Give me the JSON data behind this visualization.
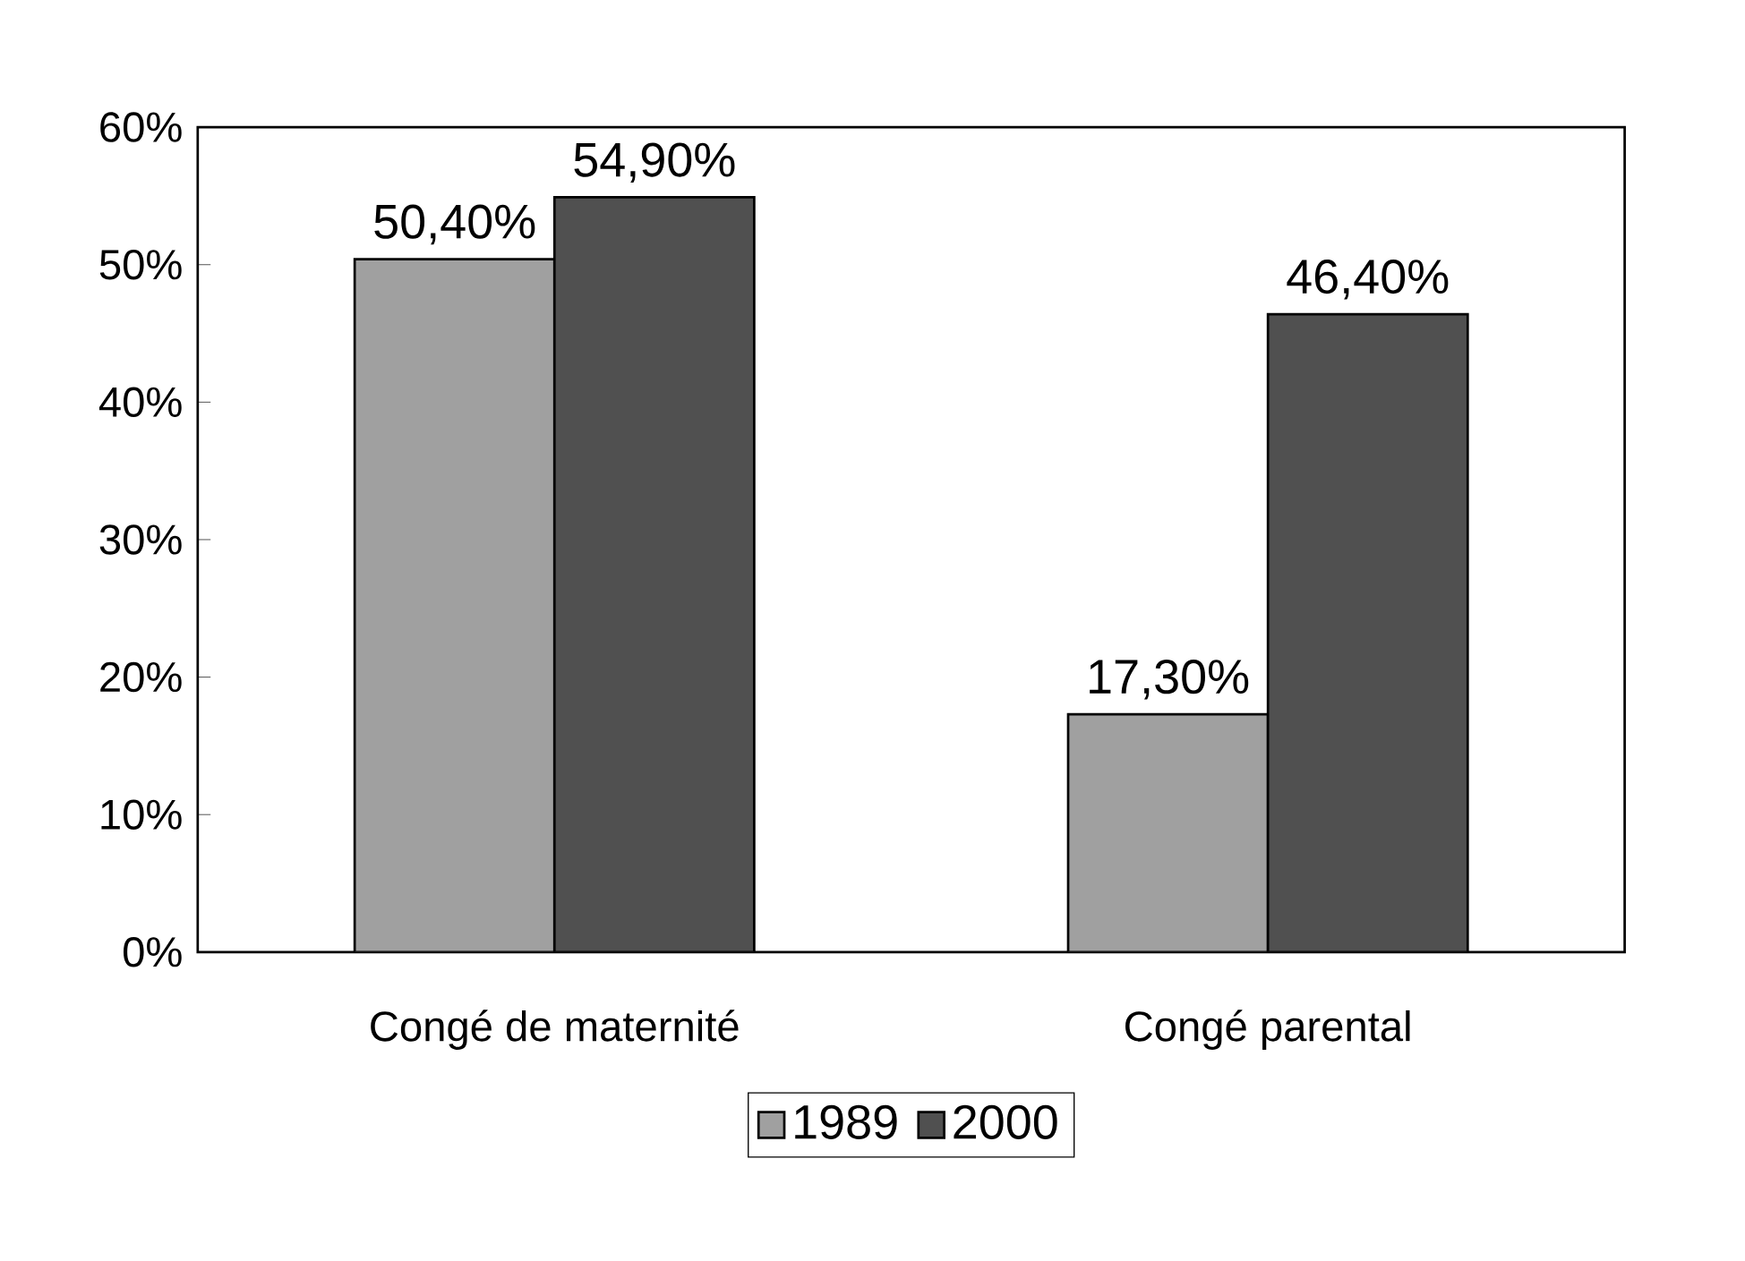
{
  "chart_data": {
    "type": "bar",
    "categories": [
      "Congé de maternité",
      "Congé parental"
    ],
    "series": [
      {
        "name": "1989",
        "color": "#a0a0a0",
        "values": [
          50.4,
          17.3
        ],
        "value_labels": [
          "50,40%",
          "17,30%"
        ]
      },
      {
        "name": "2000",
        "color": "#505050",
        "values": [
          54.9,
          46.4
        ],
        "value_labels": [
          "54,90%",
          "46,40%"
        ]
      }
    ],
    "ylim": [
      0,
      60
    ],
    "yticks": [
      {
        "value": 0,
        "label": "0%"
      },
      {
        "value": 10,
        "label": "10%"
      },
      {
        "value": 20,
        "label": "20%"
      },
      {
        "value": 30,
        "label": "30%"
      },
      {
        "value": 40,
        "label": "40%"
      },
      {
        "value": 50,
        "label": "50%"
      },
      {
        "value": 60,
        "label": "60%"
      }
    ],
    "legend": "bottom",
    "grid": false
  }
}
